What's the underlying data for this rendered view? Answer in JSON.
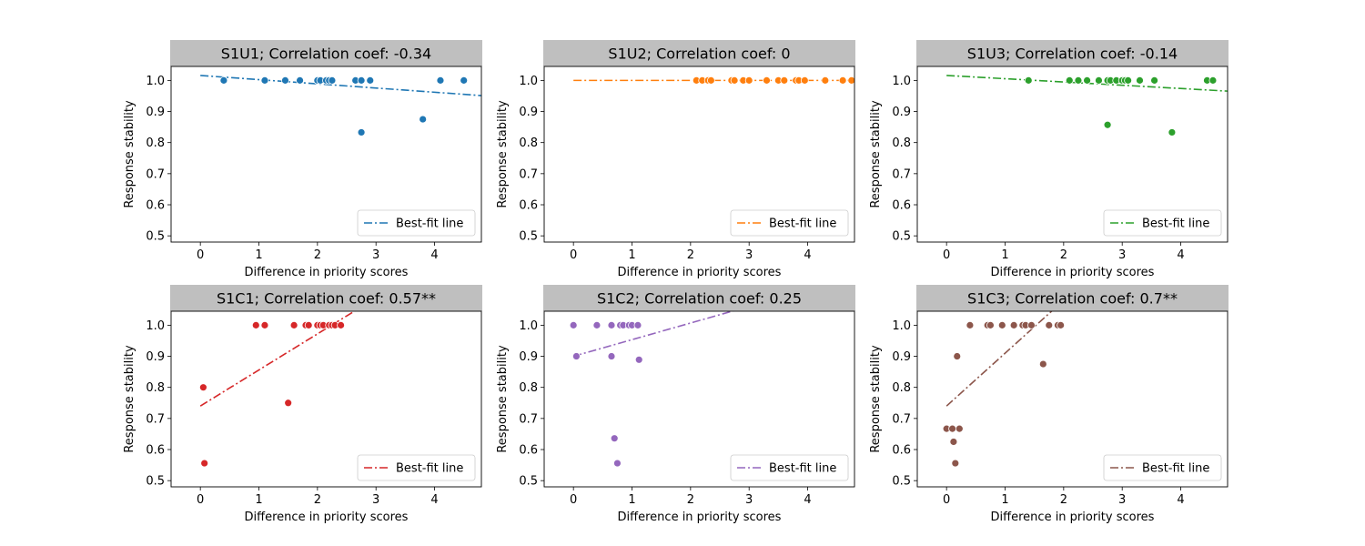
{
  "chart_data": [
    {
      "type": "scatter",
      "title": "S1U1; Correlation coef: -0.34",
      "xlabel": "Difference in priority scores",
      "ylabel": "Response stability",
      "xlim": [
        -0.5,
        4.8
      ],
      "ylim": [
        0.48,
        1.045
      ],
      "xticks": [
        "0",
        "1",
        "2",
        "3",
        "4"
      ],
      "yticks": [
        "0.5",
        "0.6",
        "0.7",
        "0.8",
        "0.9",
        "1.0"
      ],
      "color": "#1f77b4",
      "legend": "Best-fit line",
      "legend_position": "lower-right",
      "points": [
        [
          0.4,
          1.0
        ],
        [
          1.1,
          1.0
        ],
        [
          1.45,
          1.0
        ],
        [
          1.7,
          1.0
        ],
        [
          2.0,
          1.0
        ],
        [
          2.05,
          1.0
        ],
        [
          2.15,
          1.0
        ],
        [
          2.2,
          1.0
        ],
        [
          2.25,
          1.0
        ],
        [
          2.65,
          1.0
        ],
        [
          2.75,
          1.0
        ],
        [
          2.9,
          1.0
        ],
        [
          2.75,
          0.833
        ],
        [
          3.8,
          0.875
        ],
        [
          4.1,
          1.0
        ],
        [
          4.5,
          1.0
        ]
      ],
      "fit": {
        "slope": -0.0135,
        "intercept": 1.016
      }
    },
    {
      "type": "scatter",
      "title": "S1U2; Correlation coef: 0",
      "xlabel": "Difference in priority scores",
      "ylabel": "Response stability",
      "xlim": [
        -0.5,
        4.8
      ],
      "ylim": [
        0.48,
        1.045
      ],
      "xticks": [
        "0",
        "1",
        "2",
        "3",
        "4"
      ],
      "yticks": [
        "0.5",
        "0.6",
        "0.7",
        "0.8",
        "0.9",
        "1.0"
      ],
      "color": "#ff7f0e",
      "legend": "Best-fit line",
      "legend_position": "lower-right",
      "points": [
        [
          2.1,
          1.0
        ],
        [
          2.2,
          1.0
        ],
        [
          2.3,
          1.0
        ],
        [
          2.35,
          1.0
        ],
        [
          2.7,
          1.0
        ],
        [
          2.75,
          1.0
        ],
        [
          2.9,
          1.0
        ],
        [
          3.0,
          1.0
        ],
        [
          3.3,
          1.0
        ],
        [
          3.5,
          1.0
        ],
        [
          3.6,
          1.0
        ],
        [
          3.8,
          1.0
        ],
        [
          3.85,
          1.0
        ],
        [
          3.95,
          1.0
        ],
        [
          4.3,
          1.0
        ],
        [
          4.6,
          1.0
        ],
        [
          4.75,
          1.0
        ]
      ],
      "fit": {
        "slope": 0.0,
        "intercept": 1.0
      }
    },
    {
      "type": "scatter",
      "title": "S1U3; Correlation coef: -0.14",
      "xlabel": "Difference in priority scores",
      "ylabel": "Response stability",
      "xlim": [
        -0.5,
        4.8
      ],
      "ylim": [
        0.48,
        1.045
      ],
      "xticks": [
        "0",
        "1",
        "2",
        "3",
        "4"
      ],
      "yticks": [
        "0.5",
        "0.6",
        "0.7",
        "0.8",
        "0.9",
        "1.0"
      ],
      "color": "#2ca02c",
      "legend": "Best-fit line",
      "legend_position": "lower-right",
      "points": [
        [
          1.4,
          1.0
        ],
        [
          2.1,
          1.0
        ],
        [
          2.25,
          1.0
        ],
        [
          2.4,
          1.0
        ],
        [
          2.6,
          1.0
        ],
        [
          2.75,
          1.0
        ],
        [
          2.8,
          1.0
        ],
        [
          2.9,
          1.0
        ],
        [
          3.0,
          1.0
        ],
        [
          3.05,
          1.0
        ],
        [
          3.1,
          1.0
        ],
        [
          3.3,
          1.0
        ],
        [
          3.55,
          1.0
        ],
        [
          2.75,
          0.857
        ],
        [
          3.85,
          0.833
        ],
        [
          4.45,
          1.0
        ],
        [
          4.55,
          1.0
        ]
      ],
      "fit": {
        "slope": -0.0105,
        "intercept": 1.016
      }
    },
    {
      "type": "scatter",
      "title": "S1C1; Correlation coef: 0.57**",
      "xlabel": "Difference in priority scores",
      "ylabel": "Response stability",
      "xlim": [
        -0.5,
        4.8
      ],
      "ylim": [
        0.48,
        1.045
      ],
      "xticks": [
        "0",
        "1",
        "2",
        "3",
        "4"
      ],
      "yticks": [
        "0.5",
        "0.6",
        "0.7",
        "0.8",
        "0.9",
        "1.0"
      ],
      "color": "#d62728",
      "legend": "Best-fit line",
      "legend_position": "lower-right",
      "points": [
        [
          0.05,
          0.8
        ],
        [
          0.07,
          0.556
        ],
        [
          0.95,
          1.0
        ],
        [
          1.1,
          1.0
        ],
        [
          1.5,
          0.75
        ],
        [
          1.6,
          1.0
        ],
        [
          1.8,
          1.0
        ],
        [
          1.85,
          1.0
        ],
        [
          2.0,
          1.0
        ],
        [
          2.05,
          1.0
        ],
        [
          2.1,
          1.0
        ],
        [
          2.2,
          1.0
        ],
        [
          2.25,
          1.0
        ],
        [
          2.3,
          1.0
        ],
        [
          2.4,
          1.0
        ]
      ],
      "fit": {
        "slope": 0.116,
        "intercept": 0.74
      }
    },
    {
      "type": "scatter",
      "title": "S1C2; Correlation coef: 0.25",
      "xlabel": "Difference in priority scores",
      "ylabel": "Response stability",
      "xlim": [
        -0.5,
        4.8
      ],
      "ylim": [
        0.48,
        1.045
      ],
      "xticks": [
        "0",
        "1",
        "2",
        "3",
        "4"
      ],
      "yticks": [
        "0.5",
        "0.6",
        "0.7",
        "0.8",
        "0.9",
        "1.0"
      ],
      "color": "#9467bd",
      "legend": "Best-fit line",
      "legend_position": "lower-right",
      "points": [
        [
          0.0,
          1.0
        ],
        [
          0.05,
          0.9
        ],
        [
          0.4,
          1.0
        ],
        [
          0.65,
          1.0
        ],
        [
          0.65,
          0.9
        ],
        [
          0.7,
          0.636
        ],
        [
          0.75,
          0.556
        ],
        [
          0.8,
          1.0
        ],
        [
          0.85,
          1.0
        ],
        [
          0.95,
          1.0
        ],
        [
          1.0,
          1.0
        ],
        [
          1.1,
          1.0
        ],
        [
          1.12,
          0.889
        ]
      ],
      "fit": {
        "slope": 0.0535,
        "intercept": 0.9
      }
    },
    {
      "type": "scatter",
      "title": "S1C3; Correlation coef: 0.7**",
      "xlabel": "Difference in priority scores",
      "ylabel": "Response stability",
      "xlim": [
        -0.5,
        4.8
      ],
      "ylim": [
        0.48,
        1.045
      ],
      "xticks": [
        "0",
        "1",
        "2",
        "3",
        "4"
      ],
      "yticks": [
        "0.5",
        "0.6",
        "0.7",
        "0.8",
        "0.9",
        "1.0"
      ],
      "color": "#8c564b",
      "legend": "Best-fit line",
      "legend_position": "lower-right",
      "points": [
        [
          0.0,
          0.667
        ],
        [
          0.1,
          0.667
        ],
        [
          0.12,
          0.625
        ],
        [
          0.15,
          0.556
        ],
        [
          0.18,
          0.9
        ],
        [
          0.22,
          0.667
        ],
        [
          0.4,
          1.0
        ],
        [
          0.7,
          1.0
        ],
        [
          0.75,
          1.0
        ],
        [
          0.95,
          1.0
        ],
        [
          1.15,
          1.0
        ],
        [
          1.3,
          1.0
        ],
        [
          1.35,
          1.0
        ],
        [
          1.45,
          1.0
        ],
        [
          1.65,
          0.875
        ],
        [
          1.75,
          1.0
        ],
        [
          1.9,
          1.0
        ],
        [
          1.95,
          1.0
        ]
      ],
      "fit": {
        "slope": 0.17,
        "intercept": 0.74
      }
    }
  ]
}
